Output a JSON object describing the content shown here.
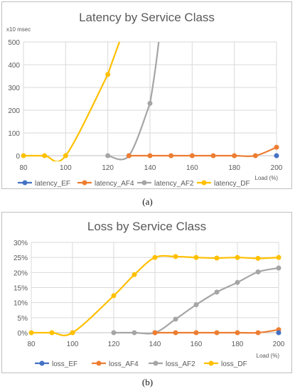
{
  "charts": [
    {
      "caption": "(a)",
      "chart_data": {
        "type": "line",
        "title": "Latency  by Service Class",
        "ylabel": "x10 msec",
        "xlabel": "Load (%)",
        "x": [
          80,
          90,
          100,
          110,
          120,
          130,
          140,
          150,
          160,
          170,
          180,
          190,
          200
        ],
        "xticks": [
          "80",
          "100",
          "120",
          "140",
          "160",
          "180",
          "200"
        ],
        "yticks": [
          "0",
          "100",
          "200",
          "300",
          "400",
          "500"
        ],
        "ylim": [
          0,
          500
        ],
        "xlim": [
          80,
          200
        ],
        "grid": true,
        "legend": "bottom",
        "series": [
          {
            "name": "latency_EF",
            "color": "#4472c4",
            "x": [
              200
            ],
            "values": [
              0
            ]
          },
          {
            "name": "latency_AF4",
            "color": "#ed7d31",
            "x": [
              130,
              140,
              150,
              160,
              170,
              180,
              190,
              200
            ],
            "values": [
              0,
              0,
              0,
              0,
              0,
              0,
              0,
              37
            ]
          },
          {
            "name": "latency_AF2",
            "color": "#a5a5a5",
            "x": [
              120,
              130,
              140
            ],
            "values": [
              0,
              0,
              230
            ]
          },
          {
            "name": "latency_DF",
            "color": "#ffc000",
            "x": [
              80,
              90,
              100,
              120
            ],
            "values": [
              0,
              0,
              0,
              357
            ]
          }
        ]
      }
    },
    {
      "caption": "(b)",
      "chart_data": {
        "type": "line",
        "title": "Loss by Service Class",
        "xlabel": "Load (%)",
        "ylabel": "",
        "x": [
          80,
          90,
          100,
          110,
          120,
          130,
          140,
          150,
          160,
          170,
          180,
          190,
          200
        ],
        "xticks": [
          "80",
          "100",
          "120",
          "140",
          "160",
          "180",
          "200"
        ],
        "yticks": [
          "0%",
          "5%",
          "10%",
          "15%",
          "20%",
          "25%",
          "30%"
        ],
        "ylim": [
          0,
          30
        ],
        "xlim": [
          80,
          200
        ],
        "grid": true,
        "legend": "bottom",
        "series": [
          {
            "name": "loss_EF",
            "color": "#4472c4",
            "x": [
              200
            ],
            "values": [
              0
            ]
          },
          {
            "name": "loss_AF4",
            "color": "#ed7d31",
            "x": [
              140,
              150,
              160,
              170,
              180,
              190,
              200
            ],
            "values": [
              0,
              0,
              0,
              0,
              0,
              0,
              1
            ]
          },
          {
            "name": "loss_AF2",
            "color": "#a5a5a5",
            "x": [
              120,
              130,
              140,
              150,
              160,
              170,
              180,
              190,
              200
            ],
            "values": [
              0,
              0,
              0,
              4.5,
              9.3,
              13.5,
              16.7,
              20.2,
              21.5
            ]
          },
          {
            "name": "loss_DF",
            "color": "#ffc000",
            "x": [
              80,
              90,
              100,
              120,
              130,
              140,
              150,
              160,
              170,
              180,
              190,
              200
            ],
            "values": [
              0,
              0,
              0,
              12.3,
              19.3,
              25,
              25.3,
              25,
              24.8,
              25,
              24.7,
              25
            ]
          }
        ]
      }
    }
  ]
}
